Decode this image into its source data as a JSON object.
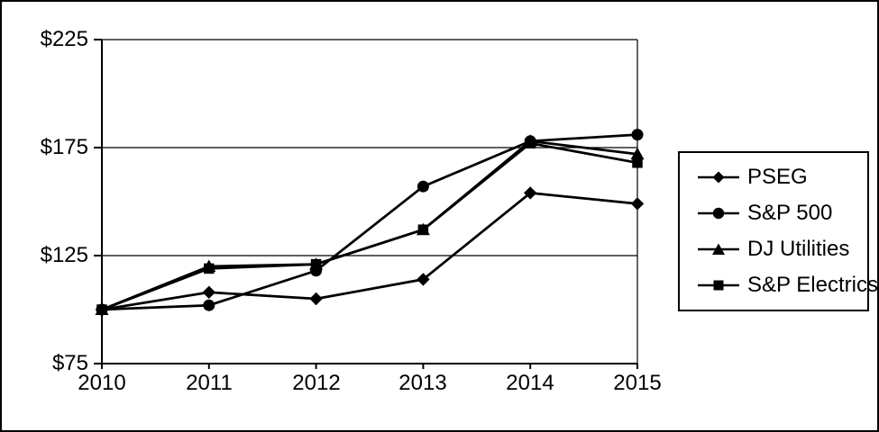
{
  "chart_data": {
    "type": "line",
    "title": "",
    "xlabel": "",
    "ylabel": "",
    "x_labels": [
      "2010",
      "2011",
      "2012",
      "2013",
      "2014",
      "2015"
    ],
    "y_tick_labels": [
      "$225",
      "$175",
      "$125",
      "$75"
    ],
    "y_tick_values": [
      225,
      175,
      125,
      75
    ],
    "ylim": [
      75,
      225
    ],
    "grid": "horizontal",
    "line_color": "#000000",
    "background_color": "#ffffff",
    "legend_position": "right-outside",
    "series": [
      {
        "name": "PSEG",
        "marker": "diamond",
        "values": [
          100,
          108,
          105,
          114,
          154,
          149
        ]
      },
      {
        "name": "S&P 500",
        "marker": "circle",
        "values": [
          100,
          102,
          118,
          157,
          178,
          181
        ]
      },
      {
        "name": "DJ Utilities",
        "marker": "triangle-up",
        "values": [
          100,
          120,
          121,
          137,
          178,
          172
        ]
      },
      {
        "name": "S&P Electrics",
        "marker": "square",
        "values": [
          100,
          119,
          121,
          137,
          177,
          168
        ]
      }
    ]
  },
  "legend": {
    "items": [
      {
        "label": "PSEG"
      },
      {
        "label": "S&P 500"
      },
      {
        "label": "DJ Utilities"
      },
      {
        "label": "S&P Electrics"
      }
    ]
  }
}
